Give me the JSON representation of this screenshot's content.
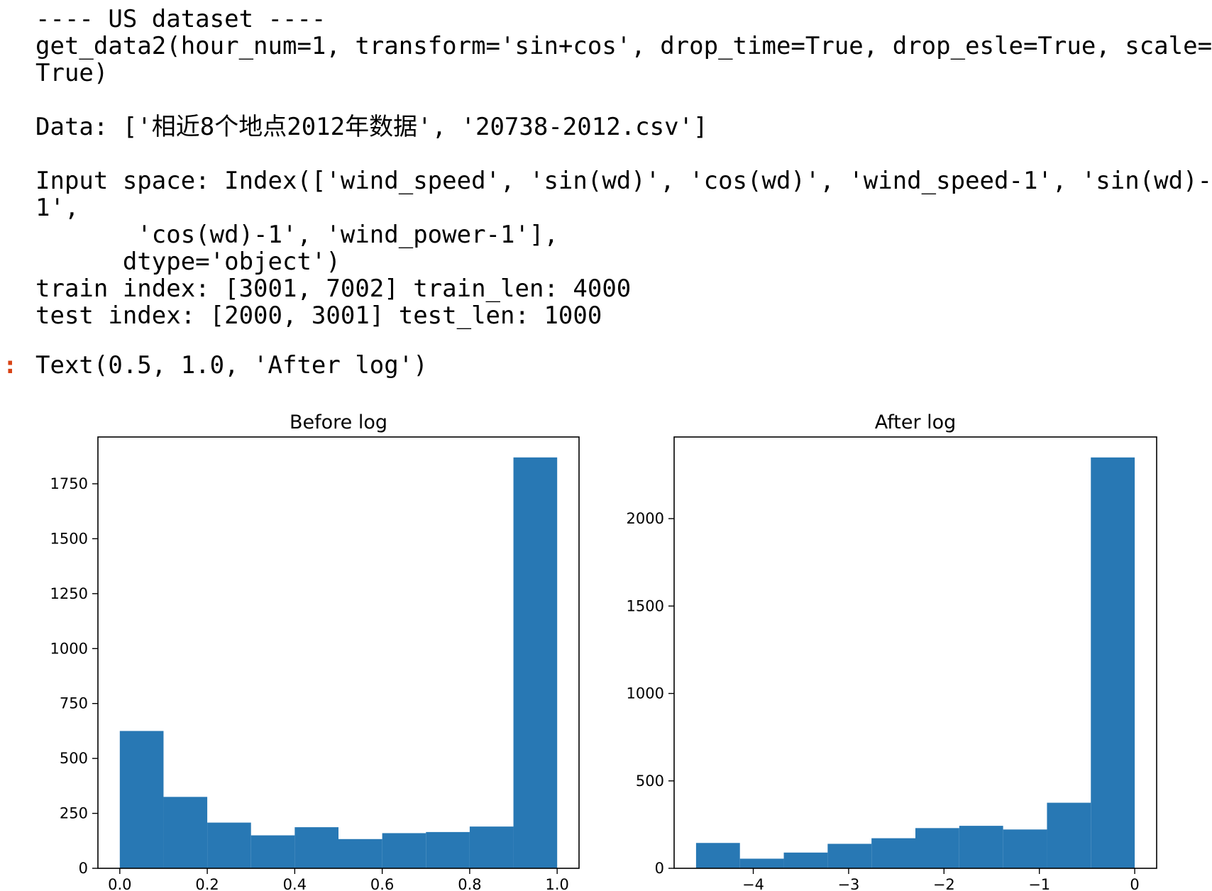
{
  "output": {
    "lines": [
      "---- US dataset ----",
      "get_data2(hour_num=1, transform='sin+cos', drop_time=True, drop_esle=True, scale=",
      "True)",
      "",
      "Data: ['相近8个地点2012年数据', '20738-2012.csv']",
      "",
      "Input space: Index(['wind_speed', 'sin(wd)', 'cos(wd)', 'wind_speed-1', 'sin(wd)-",
      "1',",
      "       'cos(wd)-1', 'wind_power-1'],",
      "      dtype='object')",
      "train index: [3001, 7002] train_len: 4000",
      "test index: [2000, 3001] test_len: 1000"
    ],
    "prompt_marker": ":",
    "result_text": "Text(0.5, 1.0, 'After log')"
  },
  "colors": {
    "bar": "#2878b4",
    "axis": "#000000",
    "prompt": "#d84315"
  },
  "chart_data": [
    {
      "type": "bar",
      "title": "Before log",
      "xlabel": "",
      "ylabel": "",
      "bin_edges": [
        0.0,
        0.1,
        0.2,
        0.3,
        0.4,
        0.5,
        0.6,
        0.7,
        0.8,
        0.9,
        1.0
      ],
      "values": [
        625,
        325,
        208,
        150,
        187,
        133,
        160,
        165,
        190,
        1870
      ],
      "xlim": [
        -0.05,
        1.05
      ],
      "ylim": [
        0,
        1963
      ],
      "xticks": [
        0.0,
        0.2,
        0.4,
        0.6,
        0.8,
        1.0
      ],
      "xtick_labels": [
        "0.0",
        "0.2",
        "0.4",
        "0.6",
        "0.8",
        "1.0"
      ],
      "yticks": [
        0,
        250,
        500,
        750,
        1000,
        1250,
        1500,
        1750
      ],
      "ytick_labels": [
        "0",
        "250",
        "500",
        "750",
        "1000",
        "1250",
        "1500",
        "1750"
      ],
      "grid": false
    },
    {
      "type": "bar",
      "title": "After log",
      "xlabel": "",
      "ylabel": "",
      "bin_edges": [
        -4.6,
        -4.14,
        -3.68,
        -3.22,
        -2.76,
        -2.3,
        -1.84,
        -1.38,
        -0.92,
        -0.46,
        0.0
      ],
      "values": [
        145,
        55,
        90,
        140,
        172,
        230,
        243,
        222,
        375,
        2350
      ],
      "xlim": [
        -4.83,
        0.23
      ],
      "ylim": [
        0,
        2467
      ],
      "xticks": [
        -4,
        -3,
        -2,
        -1,
        0
      ],
      "xtick_labels": [
        "−4",
        "−3",
        "−2",
        "−1",
        "0"
      ],
      "yticks": [
        0,
        500,
        1000,
        1500,
        2000
      ],
      "ytick_labels": [
        "0",
        "500",
        "1000",
        "1500",
        "2000"
      ],
      "grid": false
    }
  ]
}
